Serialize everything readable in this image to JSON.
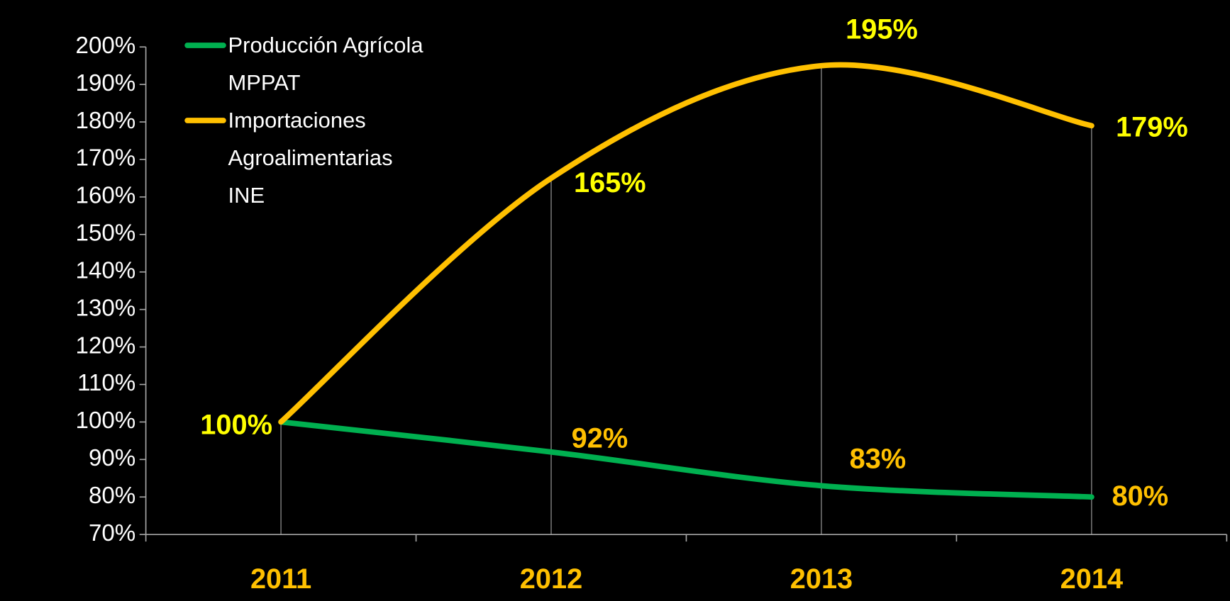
{
  "chart_data": {
    "type": "line",
    "categories": [
      "2011",
      "2012",
      "2013",
      "2014"
    ],
    "series": [
      {
        "name": "Producción Agrícola\nMPPAT",
        "color": "#00b050",
        "label_color": "#ffc000",
        "values": [
          100,
          92,
          83,
          80
        ],
        "value_labels": [
          null,
          "92%",
          "83%",
          "80%"
        ]
      },
      {
        "name": "Importaciones\nAgroalimentarias\nINE",
        "color": "#ffc000",
        "label_color": "#ffff00",
        "values": [
          100,
          165,
          195,
          179
        ],
        "value_labels": [
          "100%",
          "165%",
          "195%",
          "179%"
        ]
      }
    ],
    "ylim": [
      70,
      200
    ],
    "yticks": [
      {
        "value": 70,
        "label": "70%"
      },
      {
        "value": 80,
        "label": "80%"
      },
      {
        "value": 90,
        "label": "90%"
      },
      {
        "value": 100,
        "label": "100%"
      },
      {
        "value": 110,
        "label": "110%"
      },
      {
        "value": 120,
        "label": "120%"
      },
      {
        "value": 130,
        "label": "130%"
      },
      {
        "value": 140,
        "label": "140%"
      },
      {
        "value": 150,
        "label": "150%"
      },
      {
        "value": 160,
        "label": "160%"
      },
      {
        "value": 170,
        "label": "170%"
      },
      {
        "value": 180,
        "label": "180%"
      },
      {
        "value": 190,
        "label": "190%"
      },
      {
        "value": 200,
        "label": "200%"
      }
    ],
    "smooth": true,
    "drop_lines": true,
    "legend": "upper left"
  }
}
